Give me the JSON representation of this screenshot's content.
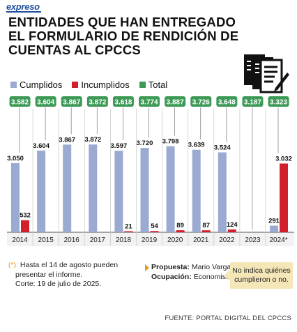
{
  "brand": "expreso",
  "title": "ENTIDADES QUE HAN ENTREGADO EL FORMULARIO DE RENDICIÓN DE CUENTAS AL CPCCS",
  "legend": {
    "cumplidos": "Cumplidos",
    "incumplidos": "Incumplidos",
    "total": "Total"
  },
  "colors": {
    "cumplidos": "#9aaad1",
    "incumplidos": "#d21f2b",
    "total": "#3d9a56",
    "note_bg": "#f5e6b8",
    "accent": "#e29a1a"
  },
  "chart_data": {
    "type": "bar",
    "categories": [
      "2014",
      "2015",
      "2016",
      "2017",
      "2018",
      "2019",
      "2020",
      "2021",
      "2022",
      "2023",
      "2024*"
    ],
    "series": [
      {
        "name": "Cumplidos",
        "values": [
          3050,
          3604,
          3867,
          3872,
          3597,
          3720,
          3798,
          3639,
          3524,
          null,
          291
        ],
        "labels": [
          "3.050",
          "3.604",
          "3.867",
          "3.872",
          "3.597",
          "3.720",
          "3.798",
          "3.639",
          "3.524",
          "",
          "291"
        ]
      },
      {
        "name": "Incumplidos",
        "values": [
          532,
          null,
          null,
          null,
          21,
          54,
          89,
          87,
          124,
          null,
          3032
        ],
        "labels": [
          "532",
          "",
          "",
          "",
          "21",
          "54",
          "89",
          "87",
          "124",
          "",
          "3.032"
        ]
      },
      {
        "name": "Total",
        "values": [
          3582,
          3604,
          3867,
          3872,
          3618,
          3774,
          3887,
          3726,
          3648,
          3187,
          3323
        ],
        "labels": [
          "3.582",
          "3.604",
          "3.867",
          "3.872",
          "3.618",
          "3.774",
          "3.887",
          "3.726",
          "3.648",
          "3.187",
          "3.323"
        ]
      }
    ],
    "ylim": [
      0,
      4000
    ],
    "grid": false,
    "legend_position": "top-left"
  },
  "footnote": {
    "bullet": "(*):",
    "line1": "Hasta el 14 de agosto pueden",
    "line2": "presentar el informe.",
    "line3": "Corte: 19 de julio de 2025."
  },
  "proposal": {
    "label1": "Propuesta:",
    "value1": "Mario Vargas",
    "label2": "Ocupación:",
    "value2": "Economista"
  },
  "note": {
    "line1": "No indica quiénes",
    "line2": "cumplieron o no."
  },
  "source": "FUENTE: PORTAL DIGITAL DEL CPCCS"
}
